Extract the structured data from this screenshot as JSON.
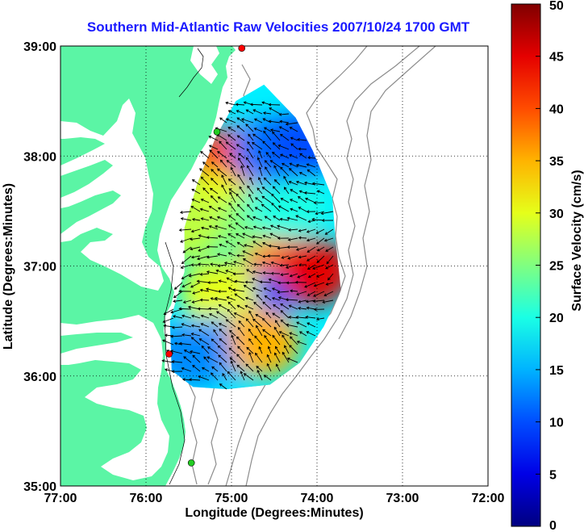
{
  "chart_data": {
    "type": "heatmap",
    "title": "Southern Mid-Atlantic Raw Velocities 2007/10/24 1700 GMT",
    "xlabel": "Longitude (Degrees:Minutes)",
    "ylabel": "Latitude (Degrees:Minutes)",
    "x_ticks": [
      "77:00",
      "76:00",
      "75:00",
      "74:00",
      "73:00",
      "72:00"
    ],
    "y_ticks": [
      "39:00",
      "38:00",
      "37:00",
      "36:00",
      "35:00"
    ],
    "xlim": [
      -77,
      -72
    ],
    "ylim": [
      35,
      39
    ],
    "grid": true,
    "colorbar": {
      "label": "Surface Velocity (cm/s)",
      "range": [
        0,
        50
      ],
      "ticks": [
        "0",
        "5",
        "10",
        "15",
        "20",
        "25",
        "30",
        "35",
        "40",
        "45",
        "50"
      ],
      "colormap": "jet"
    },
    "stations": [
      {
        "lon": -74.88,
        "lat": 38.98,
        "color": "#ff0000"
      },
      {
        "lon": -75.17,
        "lat": 38.22,
        "color": "#22cc22"
      },
      {
        "lon": -75.73,
        "lat": 36.2,
        "color": "#ff0000"
      },
      {
        "lon": -75.47,
        "lat": 35.21,
        "color": "#22cc22"
      }
    ],
    "velocity_field": [
      {
        "lon": -75.05,
        "lat": 37.95,
        "speed": 40
      },
      {
        "lon": -75.25,
        "lat": 37.55,
        "speed": 30
      },
      {
        "lon": -74.75,
        "lat": 37.35,
        "speed": 25
      },
      {
        "lon": -74.35,
        "lat": 37.55,
        "speed": 20
      },
      {
        "lon": -74.55,
        "lat": 38.05,
        "speed": 12
      },
      {
        "lon": -74.15,
        "lat": 38.1,
        "speed": 10
      },
      {
        "lon": -74.45,
        "lat": 36.95,
        "speed": 37
      },
      {
        "lon": -74.05,
        "lat": 36.95,
        "speed": 45
      },
      {
        "lon": -74.75,
        "lat": 36.65,
        "speed": 10
      },
      {
        "lon": -75.15,
        "lat": 36.75,
        "speed": 30
      },
      {
        "lon": -75.05,
        "lat": 36.25,
        "speed": 15
      },
      {
        "lon": -74.65,
        "lat": 36.3,
        "speed": 35
      },
      {
        "lon": -75.45,
        "lat": 36.2,
        "speed": 13
      },
      {
        "lon": -75.55,
        "lat": 37.35,
        "speed": 28
      }
    ]
  }
}
